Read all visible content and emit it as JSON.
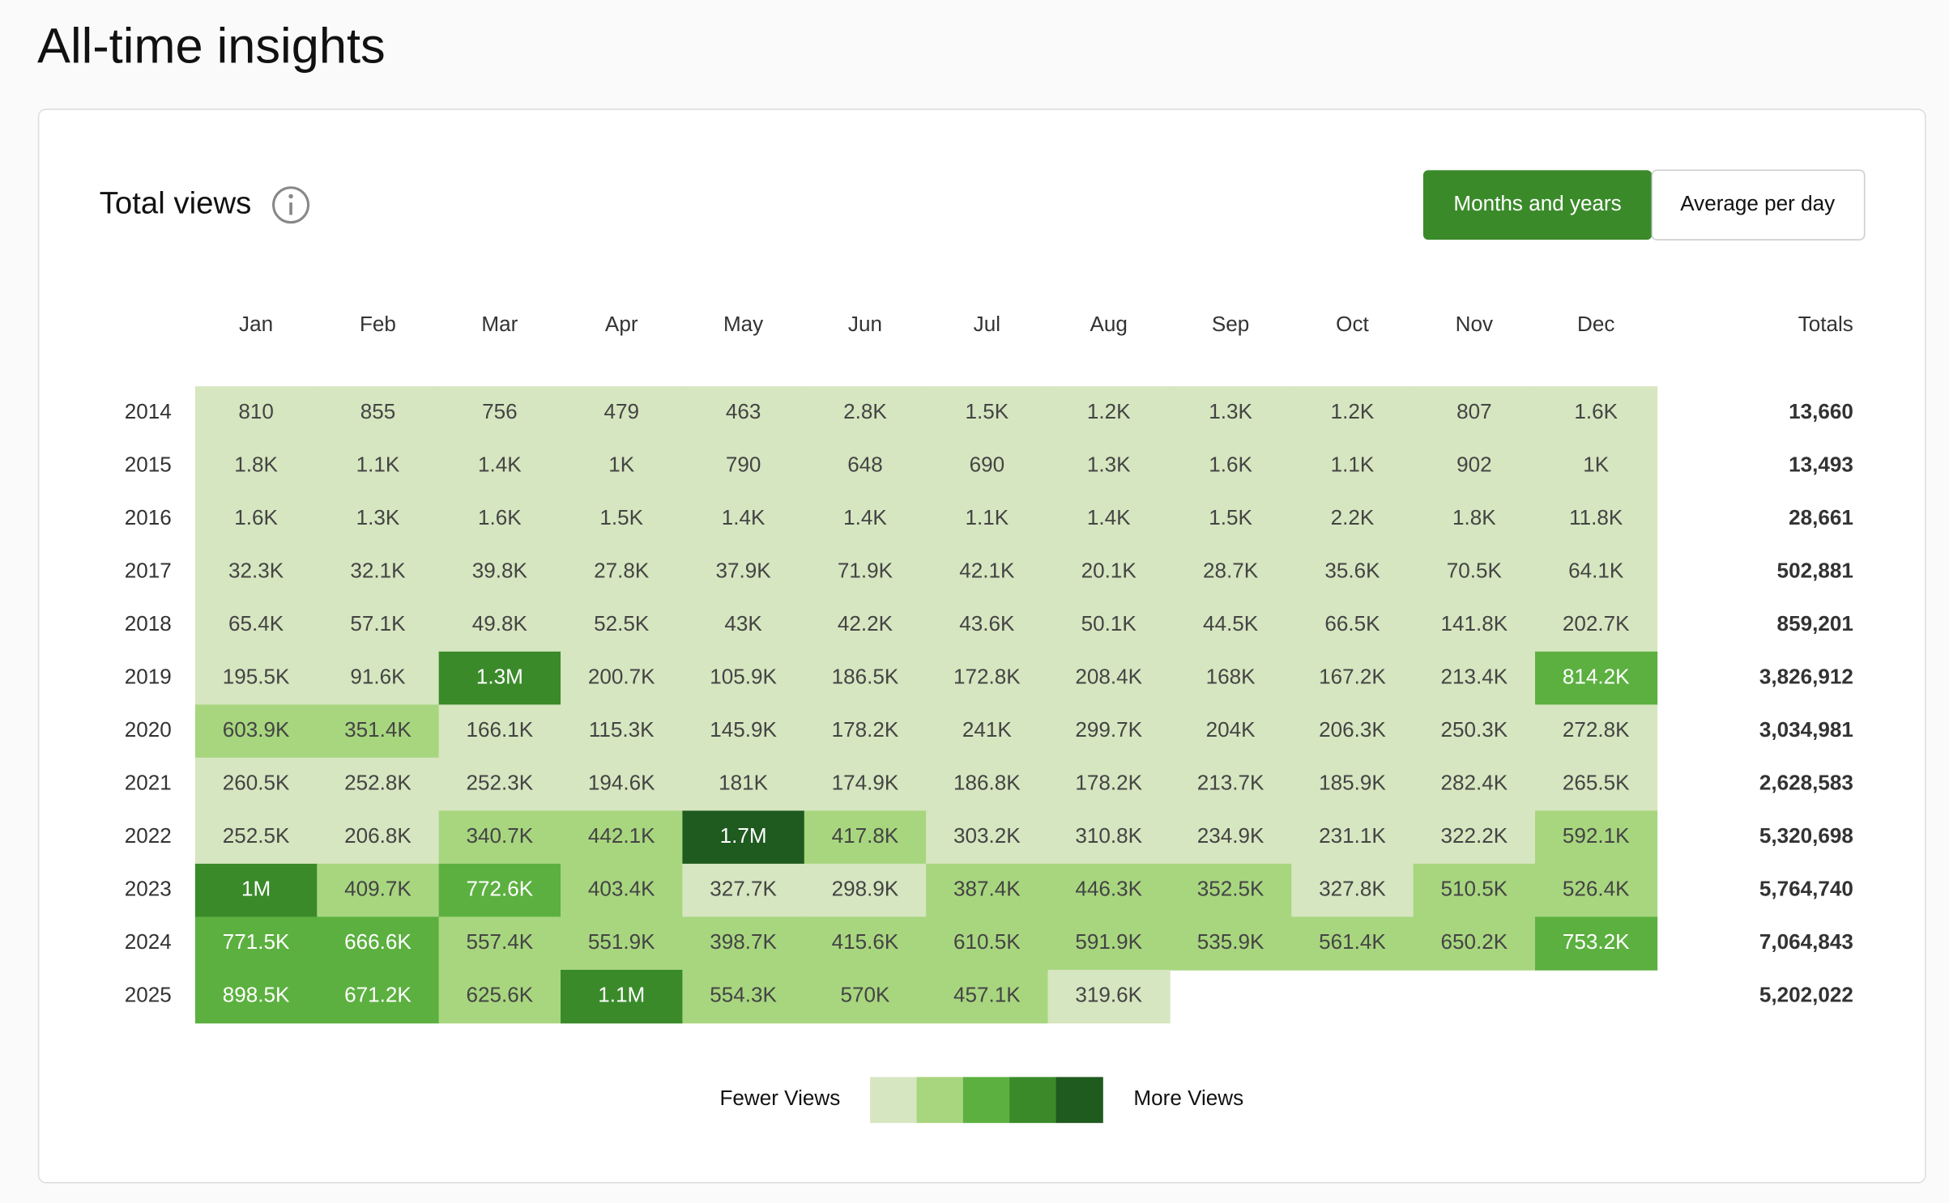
{
  "header": {
    "title": "All-time insights"
  },
  "card": {
    "title": "Total views",
    "buttons": [
      {
        "label": "Months and years",
        "active": true
      },
      {
        "label": "Average per day",
        "active": false
      }
    ]
  },
  "table": {
    "columns": [
      "Jan",
      "Feb",
      "Mar",
      "Apr",
      "May",
      "Jun",
      "Jul",
      "Aug",
      "Sep",
      "Oct",
      "Nov",
      "Dec"
    ],
    "totals_label": "Totals",
    "rows": [
      {
        "year": "2014",
        "cells": [
          "810",
          "855",
          "756",
          "479",
          "463",
          "2.8K",
          "1.5K",
          "1.2K",
          "1.3K",
          "1.2K",
          "807",
          "1.6K"
        ],
        "shades": [
          0,
          0,
          0,
          0,
          0,
          0,
          0,
          0,
          0,
          0,
          0,
          0
        ],
        "total": "13,660"
      },
      {
        "year": "2015",
        "cells": [
          "1.8K",
          "1.1K",
          "1.4K",
          "1K",
          "790",
          "648",
          "690",
          "1.3K",
          "1.6K",
          "1.1K",
          "902",
          "1K"
        ],
        "shades": [
          0,
          0,
          0,
          0,
          0,
          0,
          0,
          0,
          0,
          0,
          0,
          0
        ],
        "total": "13,493"
      },
      {
        "year": "2016",
        "cells": [
          "1.6K",
          "1.3K",
          "1.6K",
          "1.5K",
          "1.4K",
          "1.4K",
          "1.1K",
          "1.4K",
          "1.5K",
          "2.2K",
          "1.8K",
          "11.8K"
        ],
        "shades": [
          0,
          0,
          0,
          0,
          0,
          0,
          0,
          0,
          0,
          0,
          0,
          0
        ],
        "total": "28,661"
      },
      {
        "year": "2017",
        "cells": [
          "32.3K",
          "32.1K",
          "39.8K",
          "27.8K",
          "37.9K",
          "71.9K",
          "42.1K",
          "20.1K",
          "28.7K",
          "35.6K",
          "70.5K",
          "64.1K"
        ],
        "shades": [
          0,
          0,
          0,
          0,
          0,
          0,
          0,
          0,
          0,
          0,
          0,
          0
        ],
        "total": "502,881"
      },
      {
        "year": "2018",
        "cells": [
          "65.4K",
          "57.1K",
          "49.8K",
          "52.5K",
          "43K",
          "42.2K",
          "43.6K",
          "50.1K",
          "44.5K",
          "66.5K",
          "141.8K",
          "202.7K"
        ],
        "shades": [
          0,
          0,
          0,
          0,
          0,
          0,
          0,
          0,
          0,
          0,
          0,
          0
        ],
        "total": "859,201"
      },
      {
        "year": "2019",
        "cells": [
          "195.5K",
          "91.6K",
          "1.3M",
          "200.7K",
          "105.9K",
          "186.5K",
          "172.8K",
          "208.4K",
          "168K",
          "167.2K",
          "213.4K",
          "814.2K"
        ],
        "shades": [
          0,
          0,
          3,
          0,
          0,
          0,
          0,
          0,
          0,
          0,
          0,
          2
        ],
        "total": "3,826,912"
      },
      {
        "year": "2020",
        "cells": [
          "603.9K",
          "351.4K",
          "166.1K",
          "115.3K",
          "145.9K",
          "178.2K",
          "241K",
          "299.7K",
          "204K",
          "206.3K",
          "250.3K",
          "272.8K"
        ],
        "shades": [
          1,
          1,
          0,
          0,
          0,
          0,
          0,
          0,
          0,
          0,
          0,
          0
        ],
        "total": "3,034,981"
      },
      {
        "year": "2021",
        "cells": [
          "260.5K",
          "252.8K",
          "252.3K",
          "194.6K",
          "181K",
          "174.9K",
          "186.8K",
          "178.2K",
          "213.7K",
          "185.9K",
          "282.4K",
          "265.5K"
        ],
        "shades": [
          0,
          0,
          0,
          0,
          0,
          0,
          0,
          0,
          0,
          0,
          0,
          0
        ],
        "total": "2,628,583"
      },
      {
        "year": "2022",
        "cells": [
          "252.5K",
          "206.8K",
          "340.7K",
          "442.1K",
          "1.7M",
          "417.8K",
          "303.2K",
          "310.8K",
          "234.9K",
          "231.1K",
          "322.2K",
          "592.1K"
        ],
        "shades": [
          0,
          0,
          1,
          1,
          4,
          1,
          0,
          0,
          0,
          0,
          0,
          1
        ],
        "total": "5,320,698"
      },
      {
        "year": "2023",
        "cells": [
          "1M",
          "409.7K",
          "772.6K",
          "403.4K",
          "327.7K",
          "298.9K",
          "387.4K",
          "446.3K",
          "352.5K",
          "327.8K",
          "510.5K",
          "526.4K"
        ],
        "shades": [
          3,
          1,
          2,
          1,
          0,
          0,
          1,
          1,
          1,
          0,
          1,
          1
        ],
        "total": "5,764,740"
      },
      {
        "year": "2024",
        "cells": [
          "771.5K",
          "666.6K",
          "557.4K",
          "551.9K",
          "398.7K",
          "415.6K",
          "610.5K",
          "591.9K",
          "535.9K",
          "561.4K",
          "650.2K",
          "753.2K"
        ],
        "shades": [
          2,
          2,
          1,
          1,
          1,
          1,
          1,
          1,
          1,
          1,
          1,
          2
        ],
        "total": "7,064,843"
      },
      {
        "year": "2025",
        "cells": [
          "898.5K",
          "671.2K",
          "625.6K",
          "1.1M",
          "554.3K",
          "570K",
          "457.1K",
          "319.6K",
          null,
          null,
          null,
          null
        ],
        "shades": [
          2,
          2,
          1,
          3,
          1,
          1,
          1,
          0,
          null,
          null,
          null,
          null
        ],
        "total": "5,202,022"
      }
    ]
  },
  "legend": {
    "low": "Fewer Views",
    "high": "More Views",
    "colors": [
      "#d6e6c0",
      "#a8d67f",
      "#5cb040",
      "#3a8a2a",
      "#1f5a1f"
    ]
  }
}
